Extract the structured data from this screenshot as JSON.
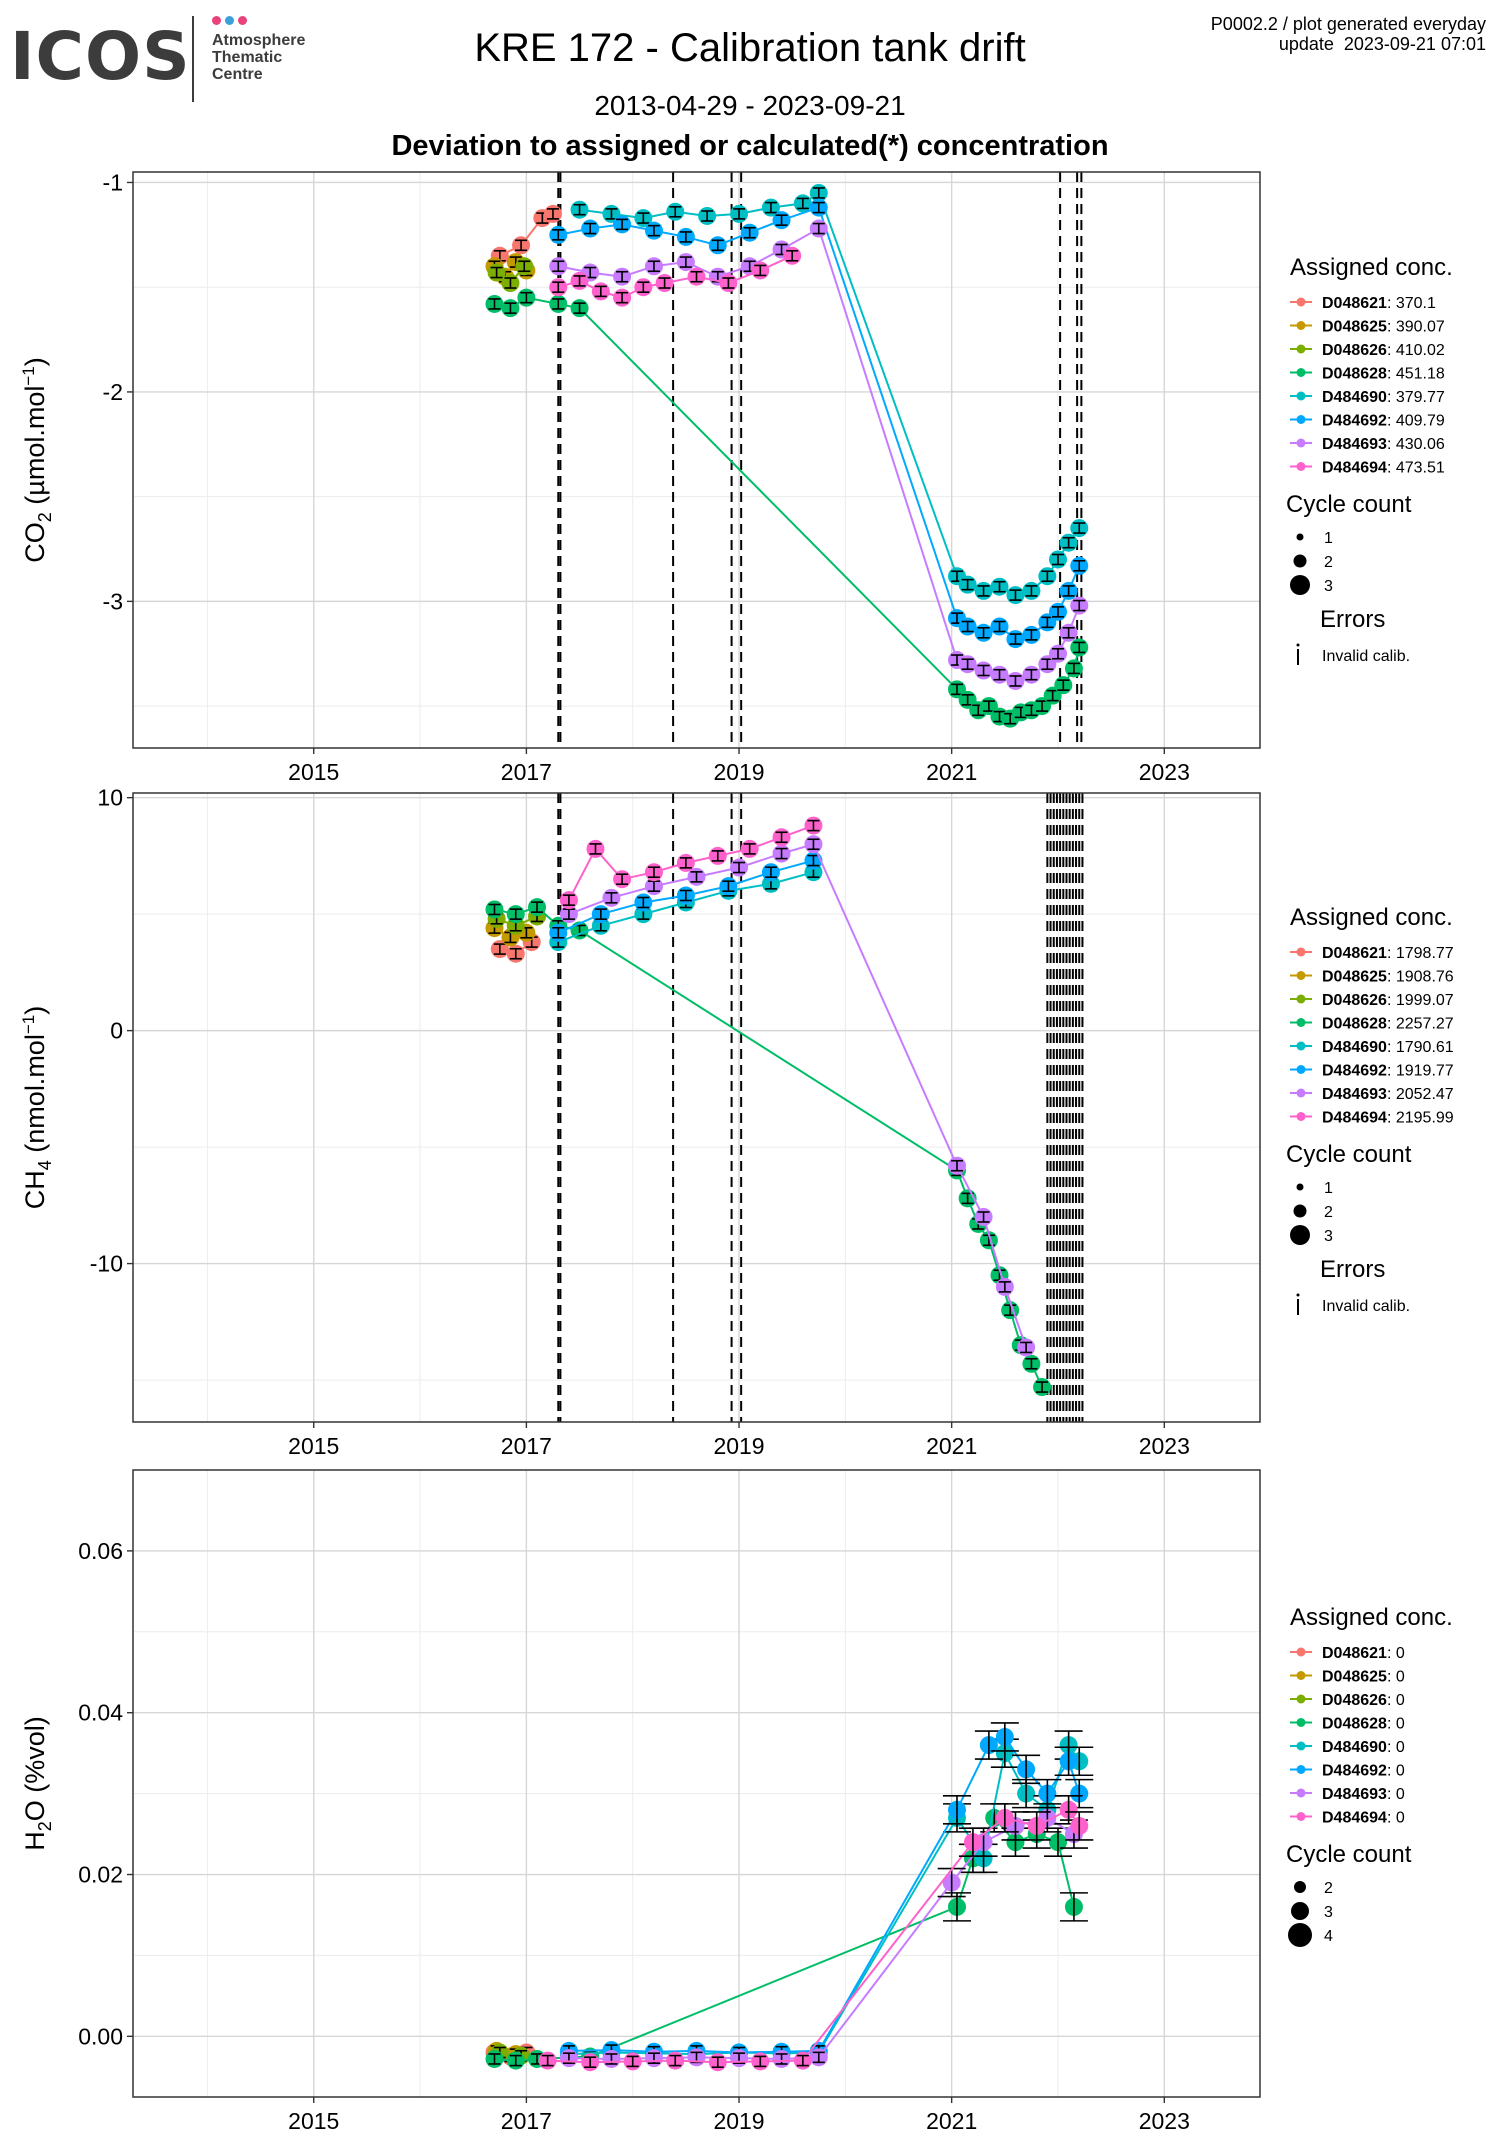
{
  "header": {
    "logo_text": "ICOS",
    "logo_subtitle": "Atmosphere\nThematic\nCentre",
    "logo_dot_colors": [
      "#e8417b",
      "#3aa0d9",
      "#e8417b"
    ],
    "title": "KRE 172 - Calibration tank drift",
    "date_range": "2013-04-29 - 2023-09-21",
    "subtitle": "Deviation to assigned or calculated(*) concentration",
    "generated_info": "P0002.2 / plot generated everyday\nupdate  2023-09-21 07:01"
  },
  "colors": {
    "D048621": "#F8766D",
    "D048625": "#C49A00",
    "D048626": "#7CAE00",
    "D048628": "#00BE67",
    "D484690": "#00BFC4",
    "D484692": "#00A9FF",
    "D484693": "#C77CFF",
    "D484694": "#FF61CC"
  },
  "chart_data": [
    {
      "type": "scatter",
      "panel": "co2",
      "ylabel": "CO2 (µmol.mol-1)",
      "ylabel_parts": [
        "CO",
        "2",
        " (µmol.mol",
        "−1",
        ")"
      ],
      "xlim": [
        2013.3,
        2023.9
      ],
      "ylim": [
        -3.7,
        -0.95
      ],
      "y_reversed": true,
      "x_ticks": [
        2015,
        2017,
        2019,
        2021,
        2023
      ],
      "y_ticks": [
        -1,
        -2,
        -3
      ],
      "y_tick_labels": [
        "-1",
        "-2",
        "-3"
      ],
      "grid": true,
      "legend_position": "right",
      "legend_title": "Assigned conc.",
      "legend": [
        {
          "tank": "D048621",
          "value": "370.1"
        },
        {
          "tank": "D048625",
          "value": "390.07"
        },
        {
          "tank": "D048626",
          "value": "410.02"
        },
        {
          "tank": "D048628",
          "value": "451.18"
        },
        {
          "tank": "D484690",
          "value": "379.77"
        },
        {
          "tank": "D484692",
          "value": "409.79"
        },
        {
          "tank": "D484693",
          "value": "430.06"
        },
        {
          "tank": "D484694",
          "value": "473.51"
        }
      ],
      "size_legend_title": "Cycle count",
      "size_legend": [
        "1",
        "2",
        "3"
      ],
      "errors_title": "Errors",
      "errors_label": "Invalid calib.",
      "vlines": [
        2017.3,
        2017.32,
        2018.38,
        2018.93,
        2019.02,
        2022.02,
        2022.18,
        2022.22
      ],
      "series": [
        {
          "name": "D048621",
          "x": [
            2016.75,
            2016.95,
            2017.15,
            2017.25
          ],
          "y": [
            -1.35,
            -1.3,
            -1.17,
            -1.15
          ]
        },
        {
          "name": "D048625",
          "x": [
            2016.7,
            2016.8,
            2016.9,
            2017.0
          ],
          "y": [
            -1.4,
            -1.45,
            -1.38,
            -1.42
          ]
        },
        {
          "name": "D048626",
          "x": [
            2016.72,
            2016.85,
            2016.98
          ],
          "y": [
            -1.43,
            -1.48,
            -1.4
          ]
        },
        {
          "name": "D048628",
          "x": [
            2016.7,
            2016.85,
            2017.0,
            2017.3,
            2017.5,
            2021.05,
            2021.15,
            2021.25,
            2021.35,
            2021.45,
            2021.55,
            2021.65,
            2021.75,
            2021.85,
            2021.95,
            2022.05,
            2022.15,
            2022.2
          ],
          "y": [
            -1.58,
            -1.6,
            -1.55,
            -1.58,
            -1.6,
            -3.42,
            -3.47,
            -3.52,
            -3.5,
            -3.55,
            -3.56,
            -3.53,
            -3.52,
            -3.5,
            -3.45,
            -3.4,
            -3.32,
            -3.22
          ]
        },
        {
          "name": "D484690",
          "x": [
            2017.5,
            2017.8,
            2018.1,
            2018.4,
            2018.7,
            2019.0,
            2019.3,
            2019.6,
            2019.75,
            2021.05,
            2021.15,
            2021.3,
            2021.45,
            2021.6,
            2021.75,
            2021.9,
            2022.0,
            2022.1,
            2022.2
          ],
          "y": [
            -1.13,
            -1.15,
            -1.17,
            -1.14,
            -1.16,
            -1.15,
            -1.12,
            -1.1,
            -1.05,
            -2.88,
            -2.92,
            -2.95,
            -2.93,
            -2.97,
            -2.95,
            -2.88,
            -2.8,
            -2.72,
            -2.65
          ]
        },
        {
          "name": "D484692",
          "x": [
            2017.3,
            2017.6,
            2017.9,
            2018.2,
            2018.5,
            2018.8,
            2019.1,
            2019.4,
            2019.75,
            2021.05,
            2021.15,
            2021.3,
            2021.45,
            2021.6,
            2021.75,
            2021.9,
            2022.0,
            2022.1,
            2022.2
          ],
          "y": [
            -1.25,
            -1.22,
            -1.2,
            -1.23,
            -1.26,
            -1.3,
            -1.24,
            -1.18,
            -1.12,
            -3.08,
            -3.12,
            -3.15,
            -3.12,
            -3.18,
            -3.16,
            -3.1,
            -3.05,
            -2.95,
            -2.83
          ]
        },
        {
          "name": "D484693",
          "x": [
            2017.3,
            2017.6,
            2017.9,
            2018.2,
            2018.5,
            2018.8,
            2019.1,
            2019.4,
            2019.75,
            2021.05,
            2021.15,
            2021.3,
            2021.45,
            2021.6,
            2021.75,
            2021.9,
            2022.0,
            2022.1,
            2022.2
          ],
          "y": [
            -1.4,
            -1.43,
            -1.45,
            -1.4,
            -1.38,
            -1.45,
            -1.4,
            -1.32,
            -1.22,
            -3.28,
            -3.3,
            -3.33,
            -3.35,
            -3.38,
            -3.35,
            -3.3,
            -3.25,
            -3.15,
            -3.02
          ]
        },
        {
          "name": "D484694",
          "x": [
            2017.3,
            2017.5,
            2017.7,
            2017.9,
            2018.1,
            2018.3,
            2018.6,
            2018.9,
            2019.2,
            2019.5
          ],
          "y": [
            -1.5,
            -1.47,
            -1.52,
            -1.55,
            -1.5,
            -1.48,
            -1.45,
            -1.48,
            -1.42,
            -1.35
          ]
        }
      ]
    },
    {
      "type": "scatter",
      "panel": "ch4",
      "ylabel": "CH4 (nmol.mol-1)",
      "ylabel_parts": [
        "CH",
        "4",
        " (nmol.mol",
        "−1",
        ")"
      ],
      "xlim": [
        2013.3,
        2023.9
      ],
      "ylim": [
        -16.8,
        10.2
      ],
      "y_reversed": false,
      "x_ticks": [
        2015,
        2017,
        2019,
        2021,
        2023
      ],
      "y_ticks": [
        10,
        0,
        -10
      ],
      "y_tick_labels": [
        "10",
        "0",
        "-10"
      ],
      "grid": true,
      "legend_position": "right",
      "legend_title": "Assigned conc.",
      "legend": [
        {
          "tank": "D048621",
          "value": "1798.77"
        },
        {
          "tank": "D048625",
          "value": "1908.76"
        },
        {
          "tank": "D048626",
          "value": "1999.07"
        },
        {
          "tank": "D048628",
          "value": "2257.27"
        },
        {
          "tank": "D484690",
          "value": "1790.61"
        },
        {
          "tank": "D484692",
          "value": "1919.77"
        },
        {
          "tank": "D484693",
          "value": "2052.47"
        },
        {
          "tank": "D484694",
          "value": "2195.99"
        }
      ],
      "size_legend_title": "Cycle count",
      "size_legend": [
        "1",
        "2",
        "3"
      ],
      "errors_title": "Errors",
      "errors_label": "Invalid calib.",
      "vlines": [
        2017.3,
        2017.32,
        2018.38,
        2018.93,
        2019.02,
        2021.9,
        2021.93,
        2021.96,
        2021.99,
        2022.02,
        2022.05,
        2022.08,
        2022.11,
        2022.14,
        2022.17,
        2022.2,
        2022.23
      ],
      "series": [
        {
          "name": "D048621",
          "x": [
            2016.75,
            2016.9,
            2017.05
          ],
          "y": [
            3.5,
            3.3,
            3.8
          ]
        },
        {
          "name": "D048625",
          "x": [
            2016.7,
            2016.85,
            2017.0
          ],
          "y": [
            4.4,
            4.0,
            4.2
          ]
        },
        {
          "name": "D048626",
          "x": [
            2016.72,
            2016.9,
            2017.1
          ],
          "y": [
            4.8,
            4.5,
            4.9
          ]
        },
        {
          "name": "D048628",
          "x": [
            2016.7,
            2016.9,
            2017.1,
            2017.3,
            2017.5,
            2021.05,
            2021.15,
            2021.25,
            2021.35,
            2021.45,
            2021.55,
            2021.65,
            2021.75,
            2021.85
          ],
          "y": [
            5.2,
            5.0,
            5.3,
            4.5,
            4.3,
            -6.0,
            -7.2,
            -8.3,
            -9.0,
            -10.5,
            -12.0,
            -13.5,
            -14.3,
            -15.3
          ]
        },
        {
          "name": "D484690",
          "x": [
            2017.3,
            2017.7,
            2018.1,
            2018.5,
            2018.9,
            2019.3,
            2019.7
          ],
          "y": [
            3.8,
            4.5,
            5.0,
            5.5,
            6.0,
            6.3,
            6.8
          ]
        },
        {
          "name": "D484692",
          "x": [
            2017.3,
            2017.7,
            2018.1,
            2018.5,
            2018.9,
            2019.3,
            2019.7
          ],
          "y": [
            4.2,
            5.0,
            5.5,
            5.8,
            6.2,
            6.8,
            7.3
          ]
        },
        {
          "name": "D484693",
          "x": [
            2017.4,
            2017.8,
            2018.2,
            2018.6,
            2019.0,
            2019.4,
            2019.7,
            2021.05,
            2021.3,
            2021.5,
            2021.7
          ],
          "y": [
            5.0,
            5.7,
            6.2,
            6.6,
            7.0,
            7.6,
            8.0,
            -5.8,
            -8.0,
            -11.0,
            -13.6
          ]
        },
        {
          "name": "D484694",
          "x": [
            2017.4,
            2017.65,
            2017.9,
            2018.2,
            2018.5,
            2018.8,
            2019.1,
            2019.4,
            2019.7
          ],
          "y": [
            5.6,
            7.8,
            6.5,
            6.8,
            7.2,
            7.5,
            7.8,
            8.3,
            8.8
          ]
        }
      ]
    },
    {
      "type": "scatter",
      "panel": "h2o",
      "ylabel": "H2O (%vol)",
      "ylabel_parts": [
        "H",
        "2",
        "O (%vol)",
        "",
        ""
      ],
      "xlim": [
        2013.3,
        2023.9
      ],
      "ylim": [
        -0.0075,
        0.07
      ],
      "y_reversed": false,
      "x_ticks": [
        2015,
        2017,
        2019,
        2021,
        2023
      ],
      "y_ticks": [
        0.06,
        0.04,
        0.02,
        0.0
      ],
      "y_tick_labels": [
        "0.06",
        "0.04",
        "0.02",
        "0.00"
      ],
      "grid": true,
      "legend_position": "right",
      "legend_title": "Assigned conc.",
      "legend": [
        {
          "tank": "D048621",
          "value": "0"
        },
        {
          "tank": "D048625",
          "value": "0"
        },
        {
          "tank": "D048626",
          "value": "0"
        },
        {
          "tank": "D048628",
          "value": "0"
        },
        {
          "tank": "D484690",
          "value": "0"
        },
        {
          "tank": "D484692",
          "value": "0"
        },
        {
          "tank": "D484693",
          "value": "0"
        },
        {
          "tank": "D484694",
          "value": "0"
        }
      ],
      "size_legend_title": "Cycle count",
      "size_legend": [
        "2",
        "3",
        "4"
      ],
      "errors_title": "",
      "errors_label": "",
      "vlines": [],
      "series": [
        {
          "name": "D048621",
          "x": [
            2016.7,
            2016.85,
            2017.0
          ],
          "y": [
            -0.002,
            -0.0025,
            -0.002
          ]
        },
        {
          "name": "D048625",
          "x": [
            2016.72,
            2016.9
          ],
          "y": [
            -0.0018,
            -0.0022
          ]
        },
        {
          "name": "D048626",
          "x": [
            2016.75,
            2016.95
          ],
          "y": [
            -0.002,
            -0.0024
          ]
        },
        {
          "name": "D048628",
          "x": [
            2016.7,
            2016.9,
            2017.1,
            2017.6,
            2021.05,
            2021.2,
            2021.4,
            2021.6,
            2021.8,
            2022.0,
            2022.15
          ],
          "y": [
            -0.0028,
            -0.003,
            -0.0028,
            -0.0025,
            0.016,
            0.022,
            0.027,
            0.024,
            0.025,
            0.024,
            0.016
          ]
        },
        {
          "name": "D484690",
          "x": [
            2017.4,
            2017.8,
            2018.2,
            2018.6,
            2019.0,
            2019.4,
            2019.75,
            2021.05,
            2021.3,
            2021.5,
            2021.7,
            2021.9,
            2022.1,
            2022.2
          ],
          "y": [
            -0.0022,
            -0.002,
            -0.0021,
            -0.0022,
            -0.002,
            -0.0021,
            -0.002,
            0.027,
            0.022,
            0.035,
            0.03,
            0.028,
            0.036,
            0.034
          ]
        },
        {
          "name": "D484692",
          "x": [
            2017.4,
            2017.8,
            2018.2,
            2018.6,
            2019.0,
            2019.4,
            2019.75,
            2021.05,
            2021.35,
            2021.5,
            2021.7,
            2021.9,
            2022.1,
            2022.2
          ],
          "y": [
            -0.0018,
            -0.0017,
            -0.0019,
            -0.0018,
            -0.002,
            -0.0019,
            -0.0018,
            0.028,
            0.036,
            0.037,
            0.033,
            0.03,
            0.034,
            0.03
          ]
        },
        {
          "name": "D484693",
          "x": [
            2017.4,
            2017.8,
            2018.2,
            2018.6,
            2019.0,
            2019.4,
            2019.75,
            2021.0,
            2021.3,
            2021.6,
            2021.9,
            2022.15
          ],
          "y": [
            -0.0027,
            -0.0028,
            -0.0027,
            -0.0026,
            -0.0027,
            -0.0028,
            -0.0026,
            0.019,
            0.024,
            0.026,
            0.027,
            0.025
          ]
        },
        {
          "name": "D484694",
          "x": [
            2017.2,
            2017.6,
            2018.0,
            2018.4,
            2018.8,
            2019.2,
            2019.6,
            2021.2,
            2021.5,
            2021.8,
            2022.1,
            2022.2
          ],
          "y": [
            -0.003,
            -0.0032,
            -0.0031,
            -0.003,
            -0.0032,
            -0.0031,
            -0.003,
            0.024,
            0.027,
            0.026,
            0.028,
            0.026
          ]
        }
      ]
    }
  ]
}
